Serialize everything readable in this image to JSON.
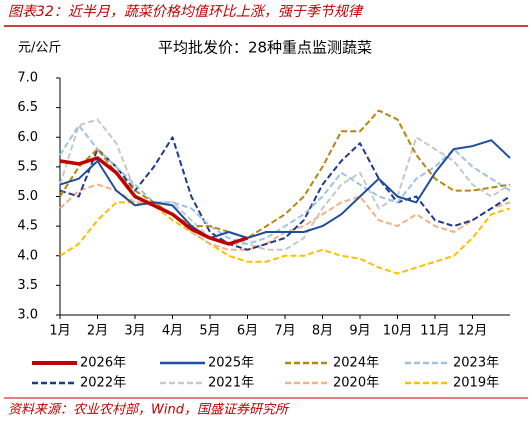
{
  "header": "图表32：近半月，蔬菜价格均值环比上涨，强于季节规律",
  "source": "资料来源：农业农村部，Wind，国盛证券研究所",
  "chart_data": {
    "type": "line",
    "title": "平均批发价：28种重点监测蔬菜",
    "y_unit": "元/公斤",
    "x": [
      1,
      1.5,
      2,
      2.5,
      3,
      3.5,
      4,
      4.5,
      5,
      5.5,
      6,
      6.5,
      7,
      7.5,
      8,
      8.5,
      9,
      9.5,
      10,
      10.5,
      11,
      11.5,
      12,
      12.5,
      13
    ],
    "xlim": [
      1,
      13
    ],
    "xticks": [
      {
        "value": 1,
        "label": "1月"
      },
      {
        "value": 2,
        "label": "2月"
      },
      {
        "value": 3,
        "label": "3月"
      },
      {
        "value": 4,
        "label": "4月"
      },
      {
        "value": 5,
        "label": "5月"
      },
      {
        "value": 6,
        "label": "6月"
      },
      {
        "value": 7,
        "label": "7月"
      },
      {
        "value": 8,
        "label": "8月"
      },
      {
        "value": 9,
        "label": "9月"
      },
      {
        "value": 10,
        "label": "10月"
      },
      {
        "value": 11,
        "label": "11月"
      },
      {
        "value": 12,
        "label": "12月"
      }
    ],
    "ylim": [
      3,
      7
    ],
    "yticks": [
      {
        "value": 3,
        "label": "3.0"
      },
      {
        "value": 3.5,
        "label": "3.5"
      },
      {
        "value": 4,
        "label": "4.0"
      },
      {
        "value": 4.5,
        "label": "4.5"
      },
      {
        "value": 5,
        "label": "5.0"
      },
      {
        "value": 5.5,
        "label": "5.5"
      },
      {
        "value": 6,
        "label": "6.0"
      },
      {
        "value": 6.5,
        "label": "6.5"
      },
      {
        "value": 7,
        "label": "7.0"
      }
    ],
    "series": [
      {
        "name": "2026年",
        "color": "#c00000",
        "dashed": false,
        "width": 3.5,
        "values": [
          5.6,
          5.55,
          5.65,
          5.4,
          5.0,
          4.85,
          4.7,
          4.45,
          4.3,
          4.2,
          4.3,
          null,
          null,
          null,
          null,
          null,
          null,
          null,
          null,
          null,
          null,
          null,
          null,
          null,
          null
        ]
      },
      {
        "name": "2025年",
        "color": "#1f4e9c",
        "dashed": false,
        "width": 2,
        "values": [
          5.2,
          5.3,
          5.6,
          5.1,
          4.85,
          4.9,
          4.85,
          4.5,
          4.3,
          4.4,
          4.3,
          4.4,
          4.4,
          4.4,
          4.5,
          4.7,
          5.0,
          5.3,
          5.0,
          4.9,
          5.4,
          5.8,
          5.85,
          5.95,
          5.65
        ]
      },
      {
        "name": "2024年",
        "color": "#b8860b",
        "dashed": true,
        "width": 2,
        "values": [
          5.0,
          5.5,
          5.8,
          5.4,
          5.1,
          4.9,
          4.7,
          4.5,
          4.5,
          4.4,
          4.3,
          4.5,
          4.7,
          5.0,
          5.5,
          6.1,
          6.1,
          6.45,
          6.3,
          5.7,
          5.3,
          5.1,
          5.1,
          5.15,
          5.2
        ]
      },
      {
        "name": "2023年",
        "color": "#9dc3e6",
        "dashed": true,
        "width": 2,
        "values": [
          5.7,
          6.2,
          5.8,
          5.5,
          5.2,
          4.9,
          4.9,
          4.8,
          4.5,
          4.3,
          4.2,
          4.3,
          4.5,
          4.7,
          5.0,
          5.4,
          5.2,
          5.0,
          4.9,
          5.3,
          5.5,
          5.8,
          5.5,
          5.3,
          5.1
        ]
      },
      {
        "name": "2022年",
        "color": "#1f3a8c",
        "dashed": true,
        "width": 2,
        "values": [
          5.1,
          5.0,
          5.8,
          5.5,
          5.1,
          5.5,
          6.0,
          5.0,
          4.4,
          4.2,
          4.1,
          4.2,
          4.3,
          4.6,
          5.2,
          5.6,
          5.9,
          5.3,
          4.9,
          5.0,
          4.6,
          4.5,
          4.6,
          4.8,
          5.0
        ]
      },
      {
        "name": "2021年",
        "color": "#c8c8c8",
        "dashed": true,
        "width": 2,
        "values": [
          5.2,
          6.2,
          6.3,
          5.9,
          5.1,
          4.9,
          4.9,
          4.6,
          4.3,
          4.2,
          4.2,
          4.1,
          4.1,
          4.3,
          4.8,
          5.2,
          5.4,
          4.8,
          5.0,
          6.0,
          5.8,
          5.6,
          5.2,
          5.0,
          5.2
        ]
      },
      {
        "name": "2020年",
        "color": "#f4b183",
        "dashed": true,
        "width": 2,
        "values": [
          4.8,
          5.1,
          5.2,
          5.1,
          4.9,
          4.9,
          4.7,
          4.4,
          4.2,
          4.1,
          4.1,
          4.2,
          4.4,
          4.5,
          4.7,
          4.9,
          5.0,
          4.6,
          4.5,
          4.7,
          4.5,
          4.4,
          4.6,
          4.8,
          4.9
        ]
      },
      {
        "name": "2019年",
        "color": "#ffc000",
        "dashed": true,
        "width": 2,
        "values": [
          4.0,
          4.2,
          4.6,
          4.9,
          4.9,
          4.85,
          4.6,
          4.4,
          4.2,
          4.0,
          3.9,
          3.9,
          4.0,
          4.0,
          4.1,
          4.0,
          3.95,
          3.8,
          3.7,
          3.8,
          3.9,
          4.0,
          4.3,
          4.7,
          4.8
        ]
      }
    ]
  }
}
